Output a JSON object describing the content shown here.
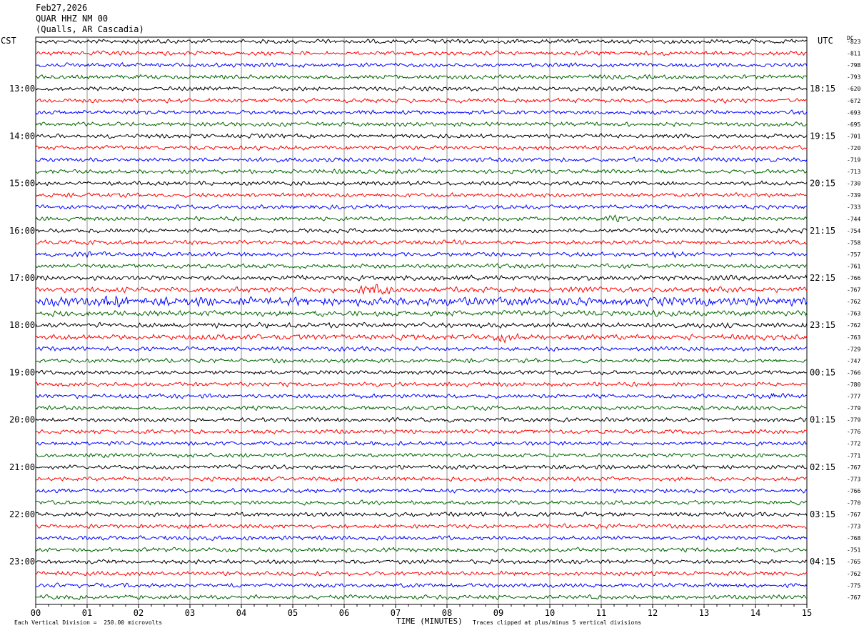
{
  "header": {
    "date": "Feb27,2026",
    "station": "QUAR HHZ NM 00",
    "location": "(Qualls, AR Cascadia)"
  },
  "left_zone": "CST",
  "right_zone": "UTC",
  "dc_label": "DC",
  "footer": {
    "scale_note": "Each Vertical Division =  250.00 microvolts",
    "axis_title": "TIME (MINUTES)",
    "clip_note": "Traces clipped at plus/minus 5 vertical divisions"
  },
  "colors": {
    "trace_cycle": [
      "#000000",
      "#ff0000",
      "#0000ff",
      "#006400"
    ],
    "grid": "#777777"
  },
  "chart_data": {
    "type": "line",
    "description_kind": "helicorder",
    "x_axis": {
      "label": "TIME (MINUTES)",
      "min": 0,
      "max": 15,
      "tick_labels": [
        "00",
        "01",
        "02",
        "03",
        "04",
        "05",
        "06",
        "07",
        "08",
        "09",
        "10",
        "11",
        "12",
        "13",
        "14",
        "15"
      ]
    },
    "left_hour_labels": [
      "13:00",
      "14:00",
      "15:00",
      "16:00",
      "17:00",
      "18:00",
      "19:00",
      "20:00",
      "21:00",
      "22:00",
      "23:00"
    ],
    "right_hour_labels": [
      "18:15",
      "19:15",
      "20:15",
      "21:15",
      "22:15",
      "23:15",
      "00:15",
      "01:15",
      "02:15",
      "03:15",
      "04:15"
    ],
    "dc_offsets": [
      -823,
      -811,
      -798,
      -793,
      -620,
      -672,
      -693,
      -695,
      -701,
      -720,
      -719,
      -713,
      -730,
      -739,
      -733,
      -744,
      -754,
      -758,
      -757,
      -761,
      -766,
      -767,
      -762,
      -763,
      -762,
      -763,
      -729,
      -747,
      -766,
      -780,
      -777,
      -779,
      -779,
      -776,
      -772,
      -771,
      -767,
      -773,
      -766,
      -770,
      -767,
      -773,
      -768,
      -751,
      -765,
      -762,
      -775,
      -767
    ],
    "trace_amplitude_scale": [
      1,
      1,
      1,
      1,
      1,
      1,
      1,
      1,
      1,
      1,
      1,
      1,
      1,
      1,
      1,
      1,
      1,
      1,
      1,
      1,
      1.2,
      1.3,
      2,
      1.3,
      1.2,
      1.3,
      1,
      1,
      1,
      1,
      1,
      1,
      1,
      1,
      1,
      1,
      1,
      1,
      1,
      1,
      1,
      1,
      1,
      1,
      1,
      1,
      1,
      1
    ],
    "events": [
      {
        "row": 21,
        "minute": 6.6,
        "amplitude": 3
      },
      {
        "row": 22,
        "minute": 1.5,
        "amplitude": 1.8
      },
      {
        "row": 25,
        "minute": 9.1,
        "amplitude": 2.2
      },
      {
        "row": 15,
        "minute": 11.3,
        "amplitude": 2
      },
      {
        "row": 30,
        "minute": 14.4,
        "amplitude": 2
      },
      {
        "row": 18,
        "minute": 1.0,
        "amplitude": 1.6
      },
      {
        "row": 18,
        "minute": 12.5,
        "amplitude": 1.6
      },
      {
        "row": 10,
        "minute": 6.2,
        "amplitude": 1.5
      }
    ]
  }
}
